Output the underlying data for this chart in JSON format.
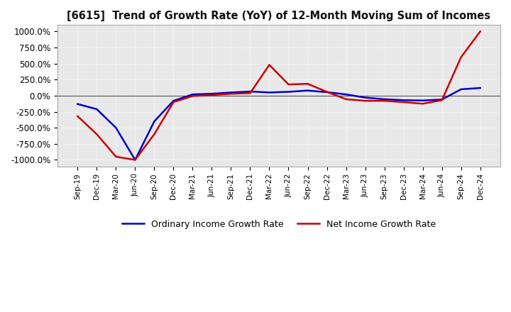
{
  "title": "[6615]  Trend of Growth Rate (YoY) of 12-Month Moving Sum of Incomes",
  "ylim": [
    -1100,
    1100
  ],
  "yticks": [
    -1000,
    -750,
    -500,
    -250,
    0,
    250,
    500,
    750,
    1000
  ],
  "ytick_labels": [
    "-1000.0%",
    "-750.0%",
    "-500.0%",
    "-250.0%",
    "0.0%",
    "250.0%",
    "500.0%",
    "750.0%",
    "1000.0%"
  ],
  "legend_labels": [
    "Ordinary Income Growth Rate",
    "Net Income Growth Rate"
  ],
  "line_colors": [
    "#0000cc",
    "#cc0000"
  ],
  "background_color": "#ffffff",
  "plot_bg_color": "#e8e8e8",
  "grid_color": "#ffffff",
  "x_labels": [
    "Sep-19",
    "Dec-19",
    "Mar-20",
    "Jun-20",
    "Sep-20",
    "Dec-20",
    "Mar-21",
    "Jun-21",
    "Sep-21",
    "Dec-21",
    "Mar-22",
    "Jun-22",
    "Sep-22",
    "Dec-22",
    "Mar-23",
    "Jun-23",
    "Sep-23",
    "Dec-23",
    "Mar-24",
    "Jun-24",
    "Sep-24",
    "Dec-24"
  ],
  "ordinary_income_gr": [
    -130,
    -210,
    -500,
    -1000,
    -400,
    -80,
    20,
    30,
    50,
    65,
    50,
    60,
    80,
    55,
    20,
    -30,
    -55,
    -70,
    -75,
    -60,
    100,
    120
  ],
  "net_income_gr": [
    -320,
    -600,
    -950,
    -1000,
    -600,
    -100,
    -5,
    10,
    30,
    40,
    480,
    175,
    185,
    60,
    -55,
    -80,
    -80,
    -100,
    -125,
    -70,
    600,
    1000
  ]
}
